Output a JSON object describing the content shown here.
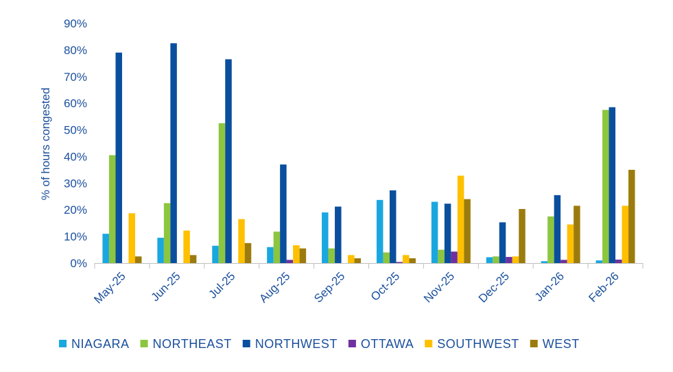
{
  "colors": {
    "text": "#1a4f9c",
    "axis": "#bfbfbf"
  },
  "chart_data": {
    "type": "bar",
    "title": "",
    "xlabel": "",
    "ylabel": "% of hours congested",
    "ylim": [
      0,
      90
    ],
    "y_ticks": [
      "0%",
      "10%",
      "20%",
      "30%",
      "40%",
      "50%",
      "60%",
      "70%",
      "80%",
      "90%"
    ],
    "grid": false,
    "legend_position": "bottom",
    "categories": [
      "May-25",
      "Jun-25",
      "Jul-25",
      "Aug-25",
      "Sep-25",
      "Oct-25",
      "Nov-25",
      "Dec-25",
      "Jan-26",
      "Feb-26"
    ],
    "series": [
      {
        "name": "NIAGARA",
        "color": "#1aa7e0",
        "values": [
          11,
          9.5,
          6.5,
          6,
          19,
          23.7,
          23,
          2.2,
          0.7,
          1
        ]
      },
      {
        "name": "NORTHEAST",
        "color": "#8cc63f",
        "values": [
          40.5,
          22.5,
          52.5,
          11.8,
          5.5,
          4,
          5,
          2.5,
          17.5,
          57.5
        ]
      },
      {
        "name": "NORTHWEST",
        "color": "#0a4f9e",
        "values": [
          79,
          82.5,
          76.5,
          37,
          21.2,
          27.3,
          22.3,
          15.3,
          25.5,
          58.5
        ]
      },
      {
        "name": "OTTAWA",
        "color": "#7030a0",
        "values": [
          0,
          0,
          0,
          1.2,
          0,
          0.4,
          4.3,
          2.3,
          1.2,
          1.3
        ]
      },
      {
        "name": "SOUTHWEST",
        "color": "#ffc000",
        "values": [
          18.7,
          12.2,
          16.5,
          6.7,
          3,
          3,
          32.8,
          2.5,
          14.5,
          21.5
        ]
      },
      {
        "name": "WEST",
        "color": "#9c7b0e",
        "values": [
          2.5,
          3,
          7.5,
          5.5,
          1.8,
          1.8,
          24,
          20.3,
          21.5,
          35
        ]
      }
    ]
  }
}
